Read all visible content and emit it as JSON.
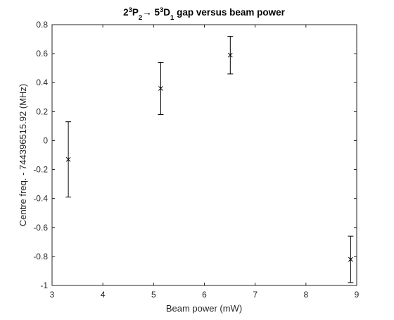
{
  "chart_data": {
    "type": "scatter",
    "title": {
      "parts": [
        {
          "text": "2",
          "shift": "base"
        },
        {
          "text": "3",
          "shift": "super"
        },
        {
          "text": "P",
          "shift": "base"
        },
        {
          "text": "2",
          "shift": "sub"
        },
        {
          "text": "→ 5",
          "shift": "base"
        },
        {
          "text": "3",
          "shift": "super"
        },
        {
          "text": "D",
          "shift": "base"
        },
        {
          "text": "1",
          "shift": "sub"
        },
        {
          "text": " gap versus beam power",
          "shift": "base"
        }
      ]
    },
    "xlabel": "Beam power (mW)",
    "ylabel": "Centre freq. - 744396515.92 (MHz)",
    "xlim": [
      3,
      9
    ],
    "ylim": [
      -1,
      0.8
    ],
    "xticks": [
      3,
      4,
      5,
      6,
      7,
      8,
      9
    ],
    "yticks": [
      -1,
      -0.8,
      -0.6,
      -0.4,
      -0.2,
      0,
      0.2,
      0.4,
      0.6,
      0.8
    ],
    "xtick_labels": [
      "3",
      "4",
      "5",
      "6",
      "7",
      "8",
      "9"
    ],
    "ytick_labels": [
      "-1",
      "-0.8",
      "-0.6",
      "-0.4",
      "-0.2",
      "0",
      "0.2",
      "0.4",
      "0.6",
      "0.8"
    ],
    "grid": false,
    "marker": "x",
    "errorbars": true,
    "points": [
      {
        "x": 3.32,
        "y": -0.13,
        "err_low": -0.39,
        "err_high": 0.13
      },
      {
        "x": 5.14,
        "y": 0.36,
        "err_low": 0.18,
        "err_high": 0.54
      },
      {
        "x": 6.51,
        "y": 0.59,
        "err_low": 0.46,
        "err_high": 0.72
      },
      {
        "x": 8.88,
        "y": -0.82,
        "err_low": -0.98,
        "err_high": -0.66
      }
    ]
  },
  "colors": {
    "axis": "#262626",
    "data": "#000000",
    "background": "#ffffff"
  }
}
